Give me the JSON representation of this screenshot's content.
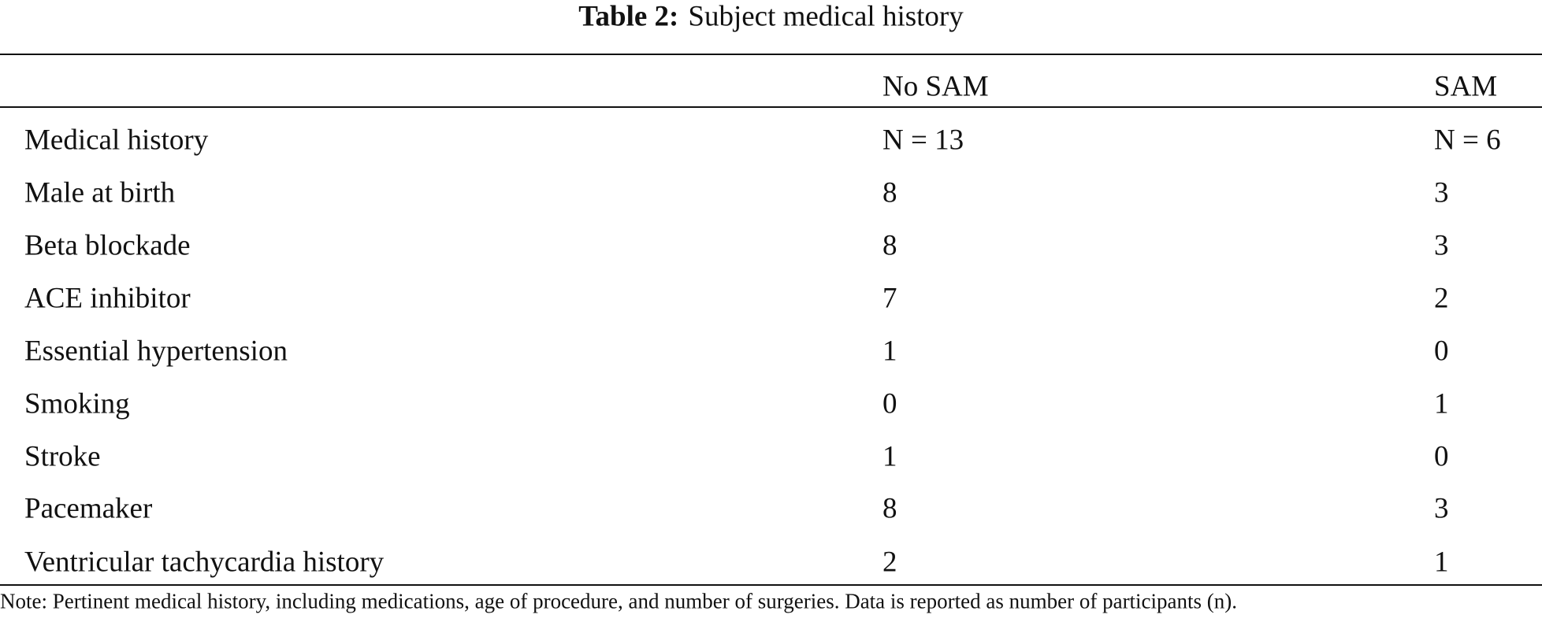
{
  "table": {
    "title_label": "Table 2:",
    "title": "Subject medical history",
    "columns": [
      "No SAM",
      "SAM"
    ],
    "rows": [
      [
        "Medical history",
        "N = 13",
        "N = 6"
      ],
      [
        "Male at birth",
        8,
        3
      ],
      [
        "Beta blockade",
        8,
        3
      ],
      [
        "ACE inhibitor",
        7,
        2
      ],
      [
        "Essential hypertension",
        1,
        0
      ],
      [
        "Smoking",
        0,
        1
      ],
      [
        "Stroke",
        1,
        0
      ],
      [
        "Pacemaker",
        8,
        3
      ],
      [
        "Ventricular tachycardia history",
        2,
        1
      ]
    ],
    "note": "Note: Pertinent medical history, including medications, age of procedure, and number of surgeries. Data is reported as number of participants (n)."
  }
}
